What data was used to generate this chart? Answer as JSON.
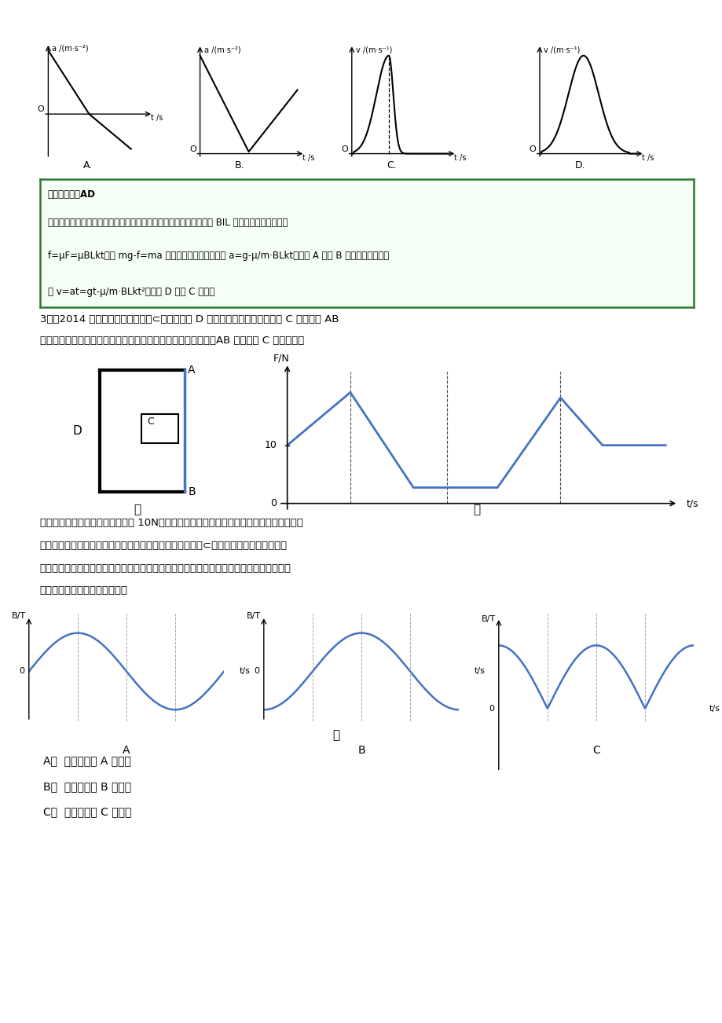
{
  "bg_color": "#ffffff",
  "top_graphs": {
    "A_label": "a /(m·s⁻²)",
    "B_label": "a /(m·s⁻²)",
    "C_label": "v /(m·s⁻¹)",
    "D_label": "v /(m·s⁻¹)",
    "t_label": "t /s"
  },
  "answer_line1": "《参考答案》AD",
  "answer_line2": "《名师解析》金属棒下落，竖直方向受到重力和摩擦力作用，安培力 BIL 提供压力作用，摩擦力",
  "answer_line3": "f=μF=μBLkt，由 mg-f=ma 可得金属棒下落的加速度 a=g-μ/m·BLkt，选项 A 正确 B 错误。金属棒的速",
  "answer_line4": "度 v=at=gt-μ/m·BLkt²，选项 D 正确 C 错误。",
  "q3_line1": "3．（2014 北京市东城区模拟）将⊂形金属框架 D 固定在水平面上，用绝缘杆 C 将金属棒 AB",
  "q3_line2": "顶在金属框架的两端，组成一个良好的矩形回路，如图甲所示。AB 与绝缘杆 C 间有压力传",
  "jia_label": "甲",
  "yi_label": "乙",
  "body_line1": "感器，开始时压力传感器的读数为 10N。将整个装置放在匀强磁场中，磁感应强度随时间做",
  "body_line2": "周期性变化，设垂直于纸面向外方向的磁感应强度为正値，⊂形金属框架放入磁场前后的",
  "body_line3": "形变量可认为相同。压力传感器测出压力随时间变化的图像如图乙所示。由此可以推断，匀",
  "body_line4": "强磁场随时间变化的情况可能是",
  "bing_label": "丙",
  "choice_A": "A．  如图丙中的 A 图所示",
  "choice_B": "B．  如图丙中的 B 图所示",
  "choice_C": "C．  如图丙中的 C 图所示",
  "blue_color": "#4472C4",
  "green_border": "#2d7a2d"
}
